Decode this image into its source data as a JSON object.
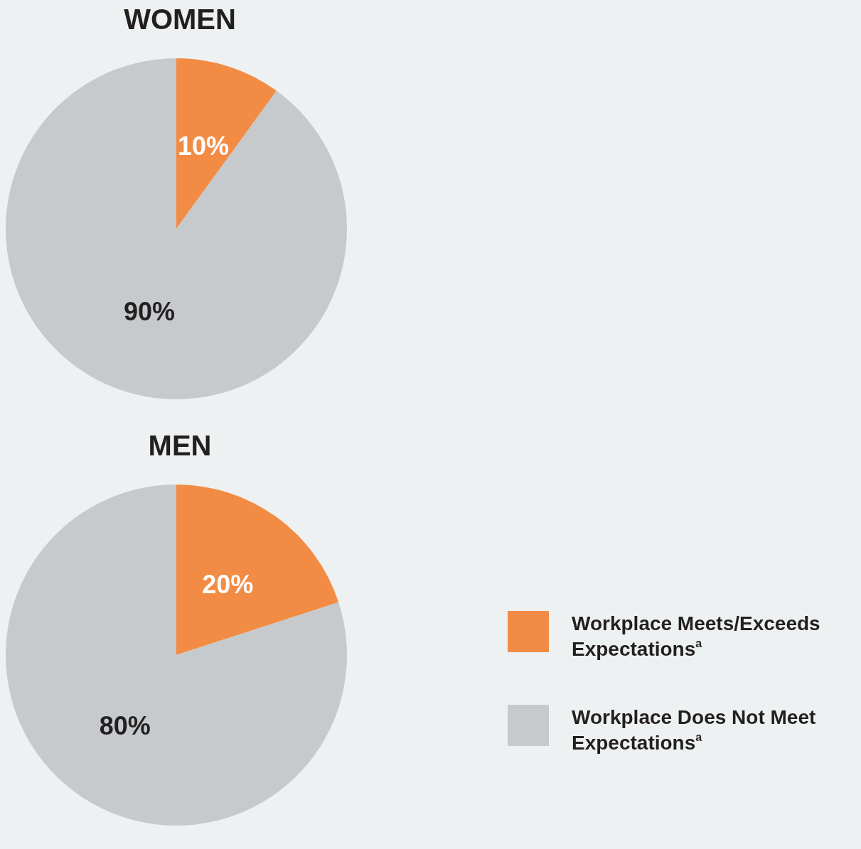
{
  "chart_data": [
    {
      "type": "pie",
      "title": "WOMEN",
      "categories": [
        null,
        null
      ],
      "values": [
        10,
        90
      ],
      "value_labels": [
        "10%",
        "90%"
      ],
      "colors": [
        "#f28c45",
        "#c6cacd"
      ],
      "legend": false
    },
    {
      "type": "pie",
      "title": "MEN",
      "categories": [
        "Workplace Meets/Exceeds Expectations$^{a}$",
        "Workplace Does Not Meet Expectations$^{a}$"
      ],
      "values": [
        20,
        80
      ],
      "value_labels": [
        "20%",
        "80%"
      ],
      "colors": [
        "#f28c45",
        "#c6cacd"
      ],
      "legend": "right"
    }
  ]
}
